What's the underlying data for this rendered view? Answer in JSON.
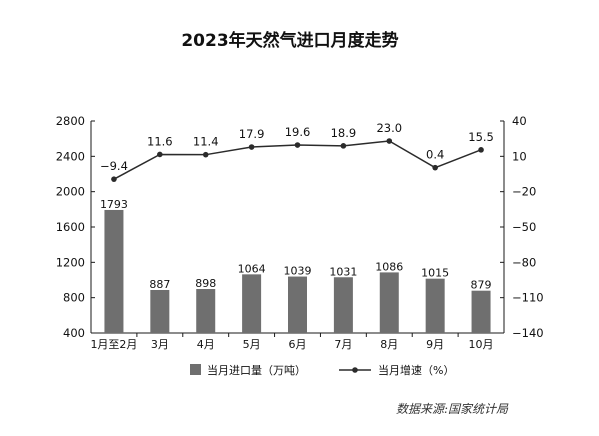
{
  "chart_data": {
    "type": "bar",
    "title": "2023年天然气进口月度走势",
    "categories": [
      "1月至2月",
      "3月",
      "4月",
      "5月",
      "6月",
      "7月",
      "8月",
      "9月",
      "10月"
    ],
    "series": [
      {
        "name": "当月进口量（万吨）",
        "type": "bar",
        "axis": "left",
        "values": [
          1793,
          887,
          898,
          1064,
          1039,
          1031,
          1086,
          1015,
          879
        ],
        "labels": [
          "1793",
          "887",
          "898",
          "1064",
          "1039",
          "1031",
          "1086",
          "1015",
          "879"
        ]
      },
      {
        "name": "当月增速（%）",
        "type": "line",
        "axis": "right",
        "values": [
          -9.4,
          11.6,
          11.4,
          17.9,
          19.6,
          18.9,
          23.0,
          0.4,
          15.5
        ],
        "labels": [
          "−9.4",
          "11.6",
          "11.4",
          "17.9",
          "19.6",
          "18.9",
          "23.0",
          "0.4",
          "15.5"
        ]
      }
    ],
    "y_left": {
      "min": 400,
      "max": 2800,
      "ticks": [
        400,
        800,
        1200,
        1600,
        2000,
        2400,
        2800
      ],
      "tick_labels": [
        "400",
        "800",
        "1200",
        "1600",
        "2000",
        "2400",
        "2800"
      ]
    },
    "y_right": {
      "min": -140,
      "max": 40,
      "ticks": [
        -140,
        -110,
        -80,
        -50,
        -20,
        10,
        40
      ],
      "tick_labels": [
        "−140",
        "−110",
        "−80",
        "−50",
        "−20",
        "10",
        "40"
      ]
    },
    "legend_placement": "bottom",
    "grid": false,
    "source": "数据来源:国家统计局",
    "colors": {
      "bar": "#6f6f6f",
      "line": "#2b2b2b",
      "axis": "#1a1a1a"
    }
  }
}
